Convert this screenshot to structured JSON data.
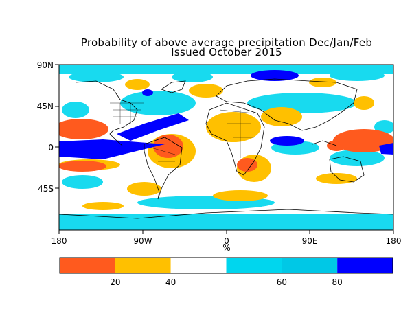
{
  "title": {
    "line1": "Probability of above average precipitation Dec/Jan/Feb",
    "line2": "Issued October 2015"
  },
  "map": {
    "lat_labels": [
      "90N",
      "45N",
      "0",
      "45S"
    ],
    "lon_labels": [
      "180",
      "90W",
      "0",
      "90E",
      "180"
    ],
    "unit_label": "%",
    "colorbar": {
      "bins": [
        {
          "color": "#ff5a1e"
        },
        {
          "color": "#ffc000"
        },
        {
          "color": "#ffffff"
        },
        {
          "color": "#00d6ee"
        },
        {
          "color": "#00c8e6"
        },
        {
          "color": "#0000ff"
        }
      ],
      "tick_labels": [
        "20",
        "40",
        "60",
        "80"
      ]
    }
  }
}
